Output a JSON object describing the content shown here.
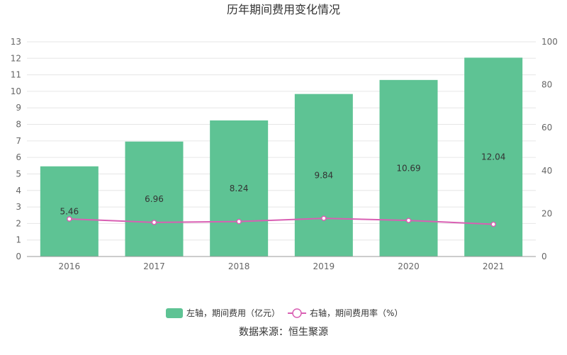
{
  "chart_data": {
    "type": "bar",
    "title": "历年期间费用变化情况",
    "categories": [
      "2016",
      "2017",
      "2018",
      "2019",
      "2020",
      "2021"
    ],
    "series": [
      {
        "name": "左轴，期间费用（亿元）",
        "type": "bar",
        "axis": "left",
        "color": "#5ec394",
        "values": [
          5.46,
          6.96,
          8.24,
          9.84,
          10.69,
          12.04
        ]
      },
      {
        "name": "右轴，期间费用率（%）",
        "type": "line",
        "axis": "right",
        "color": "#d95fb3",
        "values": [
          17.5,
          15.9,
          16.3,
          17.8,
          16.8,
          15.0
        ]
      }
    ],
    "y_left": {
      "min": 0,
      "max": 13,
      "ticks": [
        "0",
        "1",
        "2",
        "3",
        "4",
        "5",
        "6",
        "7",
        "8",
        "9",
        "10",
        "11",
        "12",
        "13"
      ]
    },
    "y_right": {
      "min": 0,
      "max": 100,
      "ticks": [
        "0",
        "20",
        "40",
        "60",
        "80",
        "100"
      ]
    },
    "grid": true,
    "legend_position": "bottom"
  },
  "source": "数据来源：恒生聚源"
}
